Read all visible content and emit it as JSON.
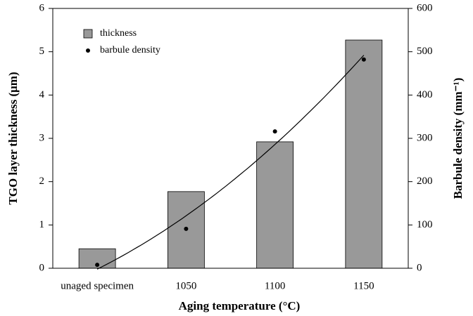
{
  "chart_data": {
    "type": "bar",
    "categories": [
      "unaged specimen",
      "1050",
      "1100",
      "1150"
    ],
    "series": [
      {
        "name": "thickness",
        "type": "bar",
        "color": "#999999",
        "values": [
          0.45,
          1.77,
          2.92,
          5.27
        ]
      },
      {
        "name": "barbule density",
        "type": "scatter",
        "axis": "y2",
        "color": "#000000",
        "values": [
          8,
          91,
          316,
          482
        ]
      }
    ],
    "ylabel": "TGO layer thickness  (μm)",
    "y2label": "Barbule density (mm⁻¹)",
    "xlabel": "Aging temperature (°C)",
    "ylim": [
      0,
      6
    ],
    "yticks": [
      0,
      1,
      2,
      3,
      4,
      5,
      6
    ],
    "y2lim": [
      0,
      600
    ],
    "y2ticks": [
      0,
      100,
      200,
      300,
      400,
      500,
      600
    ],
    "trend_line": true
  }
}
